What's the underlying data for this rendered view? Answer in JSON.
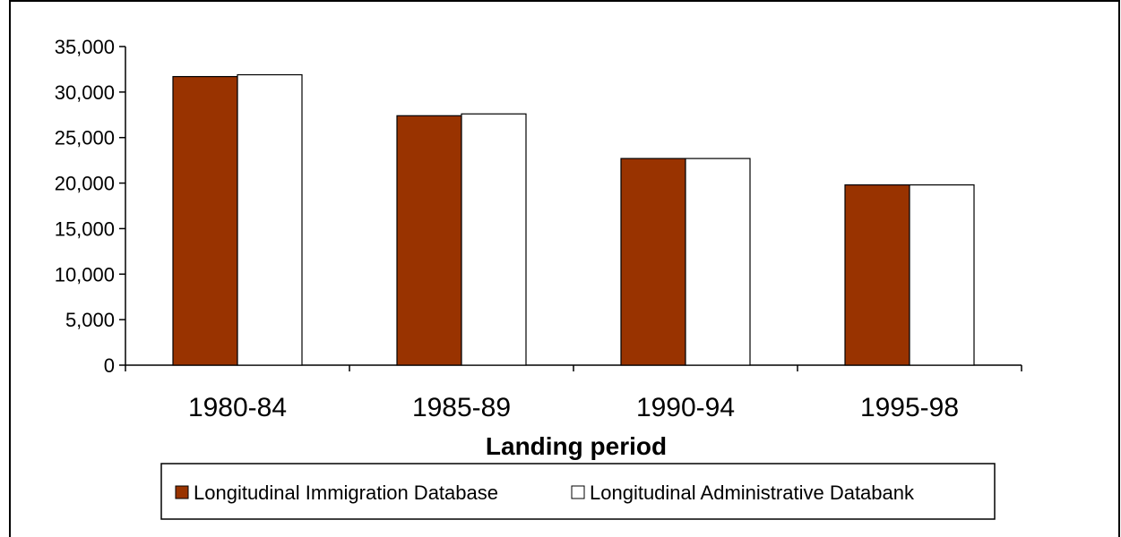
{
  "chart_data": {
    "type": "bar",
    "title": "",
    "xlabel": "Landing period",
    "ylabel": "",
    "categories": [
      "1980-84",
      "1985-89",
      "1990-94",
      "1995-98"
    ],
    "series": [
      {
        "name": "Longitudinal Immigration Database",
        "color": "#993300",
        "values": [
          31700,
          27400,
          22700,
          19800
        ]
      },
      {
        "name": "Longitudinal Administrative Databank",
        "color": "#ffffff",
        "values": [
          31900,
          27600,
          22700,
          19800
        ]
      }
    ],
    "ylim": [
      0,
      35000
    ],
    "yticks": [
      0,
      5000,
      10000,
      15000,
      20000,
      25000,
      30000,
      35000
    ],
    "ytick_labels": [
      "0",
      "5,000",
      "10,000",
      "15,000",
      "20,000",
      "25,000",
      "30,000",
      "35,000"
    ],
    "grid": false,
    "legend_position": "bottom"
  }
}
